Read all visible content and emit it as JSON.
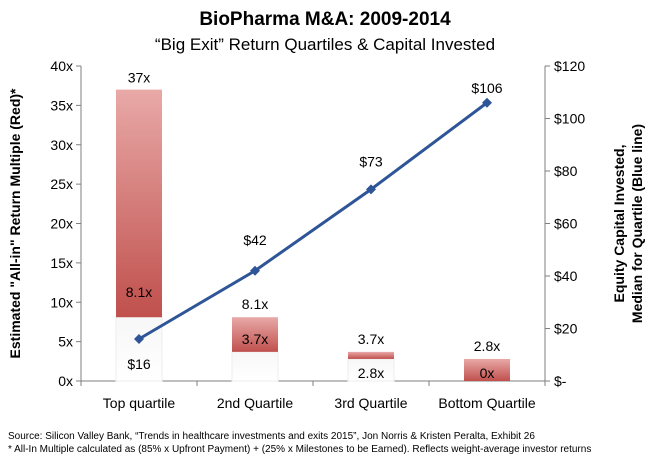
{
  "title": "BioPharma M&A: 2009-2014",
  "subtitle": "“Big Exit” Return Quartiles & Capital Invested",
  "footnotes": {
    "source": "Source: Silicon Valley Bank, “Trends in healthcare investments and exits 2015”, Jon Norris & Kristen Peralta, Exhibit 26",
    "note": "* All-In Multiple calculated as (85% x Upfront Payment) + (25% x Milestones to be Earned). Reflects weight-average investor returns"
  },
  "chart_data": {
    "type": "bar",
    "categories": [
      "Top quartile",
      "2nd Quartile",
      "3rd Quartile",
      "Bottom Quartile"
    ],
    "bar_series": {
      "top_values": [
        37,
        8.1,
        3.7,
        2.8
      ],
      "bottom_values": [
        8.1,
        3.7,
        2.8,
        0
      ],
      "top_labels": [
        "37x",
        "8.1x",
        "3.7x",
        "2.8x"
      ],
      "bottom_labels": [
        "8.1x",
        "3.7x",
        "2.8x",
        "0x"
      ],
      "color": "#c0504d"
    },
    "line_series": {
      "values": [
        16,
        42,
        73,
        106
      ],
      "labels": [
        "$16",
        "$42",
        "$73",
        "$106"
      ],
      "color": "#2e5597"
    },
    "y_left": {
      "label": "Estimated \"All-in\" Return Multiple (Red)*",
      "range": [
        0,
        40
      ],
      "ticks": [
        "0x",
        "5x",
        "10x",
        "15x",
        "20x",
        "25x",
        "30x",
        "35x",
        "40x"
      ]
    },
    "y_right": {
      "label_line1": "Equity Capital Invested,",
      "label_line2": "Median for Quartile (Blue line)",
      "range": [
        0,
        120
      ],
      "ticks": [
        "$-",
        "$20",
        "$40",
        "$60",
        "$80",
        "$100",
        "$120"
      ]
    }
  }
}
